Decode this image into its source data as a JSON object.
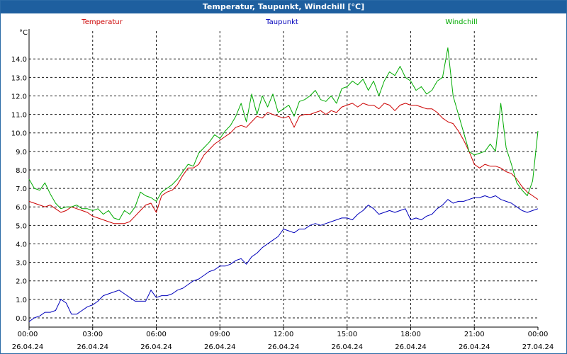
{
  "window": {
    "title": "Temperatur, Taupunkt, Windchill [°C]"
  },
  "chart_data": {
    "type": "line",
    "title": "Temperatur, Taupunkt, Windchill [°C]",
    "ylabel": "°C",
    "ylim": [
      -0.5,
      15.5
    ],
    "yticks": [
      "0.0",
      "1.0",
      "2.0",
      "3.0",
      "4.0",
      "5.0",
      "6.0",
      "7.0",
      "8.0",
      "9.0",
      "10.0",
      "11.0",
      "12.0",
      "13.0",
      "14.0"
    ],
    "xlim": [
      0,
      24
    ],
    "xticks": [
      {
        "h": 0,
        "time": "00:00",
        "date": "26.04.24"
      },
      {
        "h": 3,
        "time": "03:00",
        "date": "26.04.24"
      },
      {
        "h": 6,
        "time": "06:00",
        "date": "26.04.24"
      },
      {
        "h": 9,
        "time": "09:00",
        "date": "26.04.24"
      },
      {
        "h": 12,
        "time": "12:00",
        "date": "26.04.24"
      },
      {
        "h": 15,
        "time": "15:00",
        "date": "26.04.24"
      },
      {
        "h": 18,
        "time": "18:00",
        "date": "26.04.24"
      },
      {
        "h": 21,
        "time": "21:00",
        "date": "26.04.24"
      },
      {
        "h": 24,
        "time": "00:00",
        "date": "27.04.24"
      }
    ],
    "grid": true,
    "series": [
      {
        "name": "Temperatur",
        "color": "#cc0000",
        "x": [
          0,
          0.25,
          0.5,
          0.75,
          1,
          1.25,
          1.5,
          1.75,
          2,
          2.25,
          2.5,
          2.75,
          3,
          3.25,
          3.5,
          3.75,
          4,
          4.25,
          4.5,
          4.75,
          5,
          5.25,
          5.5,
          5.75,
          6,
          6.25,
          6.5,
          6.75,
          7,
          7.25,
          7.5,
          7.75,
          8,
          8.25,
          8.5,
          8.75,
          9,
          9.25,
          9.5,
          9.75,
          10,
          10.25,
          10.5,
          10.75,
          11,
          11.25,
          11.5,
          11.75,
          12,
          12.25,
          12.5,
          12.75,
          13,
          13.25,
          13.5,
          13.75,
          14,
          14.25,
          14.5,
          14.75,
          15,
          15.25,
          15.5,
          15.75,
          16,
          16.25,
          16.5,
          16.75,
          17,
          17.25,
          17.5,
          17.75,
          18,
          18.25,
          18.5,
          18.75,
          19,
          19.25,
          19.5,
          19.75,
          20,
          20.25,
          20.5,
          20.75,
          21,
          21.25,
          21.5,
          21.75,
          22,
          22.25,
          22.5,
          22.75,
          23,
          23.25,
          23.5,
          23.75,
          24
        ],
        "values": [
          6.3,
          6.2,
          6.1,
          6.0,
          6.1,
          5.9,
          5.7,
          5.8,
          6.0,
          5.9,
          5.8,
          5.7,
          5.5,
          5.4,
          5.3,
          5.2,
          5.1,
          5.1,
          5.1,
          5.2,
          5.5,
          5.8,
          6.1,
          6.2,
          5.7,
          6.6,
          6.8,
          6.9,
          7.2,
          7.7,
          8.1,
          8.1,
          8.3,
          8.8,
          9.1,
          9.4,
          9.6,
          9.8,
          10.0,
          10.3,
          10.4,
          10.3,
          10.6,
          10.9,
          10.8,
          11.1,
          11.0,
          10.9,
          10.8,
          10.9,
          10.3,
          10.9,
          11.0,
          11.0,
          11.1,
          11.2,
          11.0,
          11.2,
          11.1,
          11.4,
          11.5,
          11.6,
          11.4,
          11.6,
          11.5,
          11.5,
          11.3,
          11.6,
          11.5,
          11.2,
          11.5,
          11.6,
          11.5,
          11.5,
          11.4,
          11.3,
          11.3,
          11.1,
          10.8,
          10.6,
          10.5,
          10.1,
          9.6,
          9.0,
          8.3,
          8.1,
          8.3,
          8.2,
          8.2,
          8.1,
          7.9,
          7.8,
          7.5,
          7.1,
          6.8,
          6.6,
          6.4
        ]
      },
      {
        "name": "Taupunkt",
        "color": "#0000bb",
        "x": [
          0,
          0.25,
          0.5,
          0.75,
          1,
          1.25,
          1.5,
          1.75,
          2,
          2.25,
          2.5,
          2.75,
          3,
          3.25,
          3.5,
          3.75,
          4,
          4.25,
          4.5,
          4.75,
          5,
          5.25,
          5.5,
          5.75,
          6,
          6.25,
          6.5,
          6.75,
          7,
          7.25,
          7.5,
          7.75,
          8,
          8.25,
          8.5,
          8.75,
          9,
          9.25,
          9.5,
          9.75,
          10,
          10.25,
          10.5,
          10.75,
          11,
          11.25,
          11.5,
          11.75,
          12,
          12.25,
          12.5,
          12.75,
          13,
          13.25,
          13.5,
          13.75,
          14,
          14.25,
          14.5,
          14.75,
          15,
          15.25,
          15.5,
          15.75,
          16,
          16.25,
          16.5,
          16.75,
          17,
          17.25,
          17.5,
          17.75,
          18,
          18.25,
          18.5,
          18.75,
          19,
          19.25,
          19.5,
          19.75,
          20,
          20.25,
          20.5,
          20.75,
          21,
          21.25,
          21.5,
          21.75,
          22,
          22.25,
          22.5,
          22.75,
          23,
          23.25,
          23.5,
          23.75,
          24
        ],
        "values": [
          -0.2,
          0.0,
          0.1,
          0.3,
          0.3,
          0.4,
          1.0,
          0.8,
          0.2,
          0.2,
          0.4,
          0.6,
          0.7,
          0.9,
          1.2,
          1.3,
          1.4,
          1.5,
          1.3,
          1.1,
          0.9,
          0.9,
          0.9,
          1.5,
          1.1,
          1.2,
          1.2,
          1.3,
          1.5,
          1.6,
          1.8,
          2.0,
          2.1,
          2.3,
          2.5,
          2.6,
          2.8,
          2.8,
          2.9,
          3.1,
          3.2,
          2.9,
          3.3,
          3.5,
          3.8,
          4.0,
          4.2,
          4.4,
          4.8,
          4.7,
          4.6,
          4.8,
          4.8,
          5.0,
          5.1,
          5.0,
          5.1,
          5.2,
          5.3,
          5.4,
          5.4,
          5.3,
          5.6,
          5.8,
          6.1,
          5.9,
          5.6,
          5.7,
          5.8,
          5.7,
          5.8,
          5.9,
          5.3,
          5.4,
          5.3,
          5.5,
          5.6,
          5.9,
          6.1,
          6.4,
          6.2,
          6.3,
          6.3,
          6.4,
          6.5,
          6.5,
          6.6,
          6.5,
          6.6,
          6.4,
          6.3,
          6.2,
          6.0,
          5.8,
          5.7,
          5.8,
          5.9
        ]
      },
      {
        "name": "Windchill",
        "color": "#00aa00",
        "x": [
          0,
          0.25,
          0.5,
          0.75,
          1,
          1.25,
          1.5,
          1.75,
          2,
          2.25,
          2.5,
          2.75,
          3,
          3.25,
          3.5,
          3.75,
          4,
          4.25,
          4.5,
          4.75,
          5,
          5.25,
          5.5,
          5.75,
          6,
          6.25,
          6.5,
          6.75,
          7,
          7.25,
          7.5,
          7.75,
          8,
          8.25,
          8.5,
          8.75,
          9,
          9.25,
          9.5,
          9.75,
          10,
          10.25,
          10.5,
          10.75,
          11,
          11.25,
          11.5,
          11.75,
          12,
          12.25,
          12.5,
          12.75,
          13,
          13.25,
          13.5,
          13.75,
          14,
          14.25,
          14.5,
          14.75,
          15,
          15.25,
          15.5,
          15.75,
          16,
          16.25,
          16.5,
          16.75,
          17,
          17.25,
          17.5,
          17.75,
          18,
          18.25,
          18.5,
          18.75,
          19,
          19.25,
          19.5,
          19.75,
          20,
          20.25,
          20.5,
          20.75,
          21,
          21.25,
          21.5,
          21.75,
          22,
          22.25,
          22.5,
          22.75,
          23,
          23.25,
          23.5,
          23.75,
          24
        ],
        "values": [
          7.5,
          7.0,
          6.9,
          7.3,
          6.7,
          6.2,
          5.9,
          6.0,
          6.0,
          6.1,
          5.9,
          5.9,
          5.8,
          5.9,
          5.6,
          5.8,
          5.4,
          5.3,
          5.8,
          5.6,
          6.0,
          6.8,
          6.6,
          6.5,
          6.3,
          6.8,
          7.0,
          7.2,
          7.5,
          7.9,
          8.3,
          8.2,
          8.9,
          9.2,
          9.5,
          9.9,
          9.7,
          10.1,
          10.4,
          10.9,
          11.6,
          10.6,
          12.1,
          11.0,
          12.0,
          11.4,
          12.1,
          11.1,
          11.3,
          11.5,
          10.9,
          11.7,
          11.8,
          12.0,
          12.3,
          11.8,
          11.7,
          12.0,
          11.6,
          12.4,
          12.5,
          12.8,
          12.6,
          12.9,
          12.3,
          12.8,
          12.0,
          12.8,
          13.3,
          13.1,
          13.6,
          13.0,
          12.8,
          12.3,
          12.5,
          12.1,
          12.3,
          12.8,
          13.0,
          14.6,
          12.0,
          11.0,
          10.0,
          9.0,
          8.8,
          8.9,
          9.0,
          9.4,
          9.0,
          11.6,
          9.2,
          8.3,
          7.3,
          6.9,
          6.6,
          7.4,
          10.1
        ]
      }
    ]
  }
}
